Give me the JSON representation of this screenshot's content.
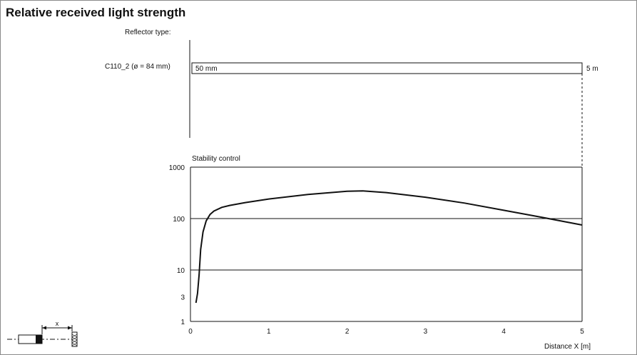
{
  "title": "Relative received light strength",
  "reflector": {
    "label": "Reflector type:",
    "name": "C110_2 (ø = 84 mm)",
    "range_start": "50 mm",
    "range_end": "5 m"
  },
  "chart_data": {
    "type": "line",
    "title": "Stability control",
    "xlabel": "Distance X [m]",
    "ylabel": "",
    "xlim": [
      0,
      5
    ],
    "ylim": [
      1,
      1000
    ],
    "yscale": "log",
    "grid": true,
    "x_ticks": [
      0,
      1,
      2,
      3,
      4,
      5
    ],
    "y_ticks": [
      1,
      3,
      10,
      100,
      1000
    ],
    "series": [
      {
        "x": [
          0.07,
          0.09,
          0.11,
          0.13,
          0.16,
          0.2,
          0.25,
          0.3,
          0.4,
          0.5,
          0.7,
          1.0,
          1.5,
          2.0,
          2.2,
          2.5,
          3.0,
          3.5,
          4.0,
          4.5,
          5.0
        ],
        "y": [
          2.3,
          3.5,
          8,
          25,
          55,
          90,
          120,
          140,
          165,
          180,
          205,
          240,
          295,
          340,
          345,
          320,
          260,
          200,
          145,
          105,
          75
        ]
      }
    ]
  },
  "diagram": {
    "x_label": "x"
  }
}
